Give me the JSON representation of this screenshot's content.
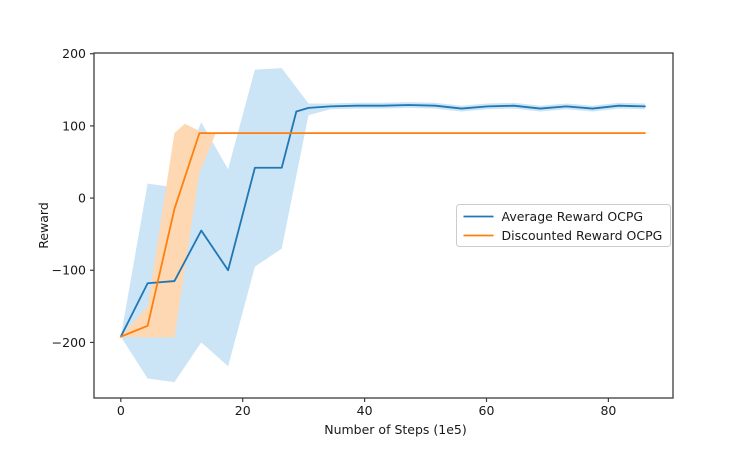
{
  "figure": {
    "background": "#ffffff",
    "spine_color": "#3c3c3c",
    "text_color": "#1a1a1a"
  },
  "chart_data": {
    "type": "line",
    "title": "",
    "xlabel": "Number of Steps (1e5)",
    "ylabel": "Reward",
    "xlim": [
      -4.4,
      90.6
    ],
    "ylim": [
      -277,
      201
    ],
    "xticks": [
      0,
      20,
      40,
      60,
      80
    ],
    "yticks": [
      -200,
      -100,
      0,
      100,
      200
    ],
    "grid": false,
    "legend": {
      "position": "center-right",
      "entries": [
        {
          "id": "average-reward-ocpg",
          "label": "Average Reward OCPG",
          "color": "#1f77b4"
        },
        {
          "id": "discounted-reward-ocpg",
          "label": "Discounted Reward OCPG",
          "color": "#ff7f0e"
        }
      ]
    },
    "series": [
      {
        "id": "average-reward-ocpg",
        "name": "Average Reward OCPG",
        "color": "#1f77b4",
        "x": [
          0,
          4.4,
          8.8,
          13.2,
          17.6,
          22,
          26.4,
          28.8,
          30.8,
          34.4,
          38.7,
          43,
          47.3,
          51.6,
          55.9,
          60.2,
          64.5,
          68.8,
          73.1,
          77.4,
          81.7,
          86
        ],
        "y": [
          -192,
          -118,
          -115,
          -45,
          -100,
          42,
          42,
          120,
          125,
          127,
          128,
          128,
          129,
          128,
          124,
          127,
          128,
          124,
          127,
          124,
          128,
          127
        ],
        "band": {
          "color": "#cbe4f6",
          "x": [
            0,
            4.4,
            8.8,
            13.2,
            17.6,
            22,
            26.4,
            30.8,
            34.4,
            38.7,
            43,
            47.3,
            51.6,
            55.9,
            60.2,
            64.5,
            68.8,
            73.1,
            77.4,
            81.7,
            86
          ],
          "upper": [
            -192,
            20,
            15,
            105,
            40,
            178,
            180,
            131,
            131,
            132,
            132,
            133,
            132,
            128,
            131,
            132,
            128,
            131,
            128,
            132,
            131
          ],
          "lower": [
            -192,
            -250,
            -255,
            -200,
            -233,
            -95,
            -70,
            115,
            123,
            124,
            124,
            125,
            124,
            120,
            123,
            124,
            120,
            123,
            120,
            124,
            123
          ]
        }
      },
      {
        "id": "discounted-reward-ocpg",
        "name": "Discounted Reward OCPG",
        "color": "#ff7f0e",
        "x": [
          0,
          4.4,
          8.8,
          12.9,
          86
        ],
        "y": [
          -192,
          -177,
          -15,
          90,
          90
        ],
        "band": {
          "color": "#fdd8b2",
          "x": [
            0,
            4.4,
            8.8,
            10.5,
            12.9,
            15.5
          ],
          "upper": [
            -192,
            -150,
            90,
            103,
            93,
            90
          ],
          "lower": [
            -192,
            -193,
            -193,
            -98,
            35,
            88
          ]
        }
      }
    ]
  }
}
